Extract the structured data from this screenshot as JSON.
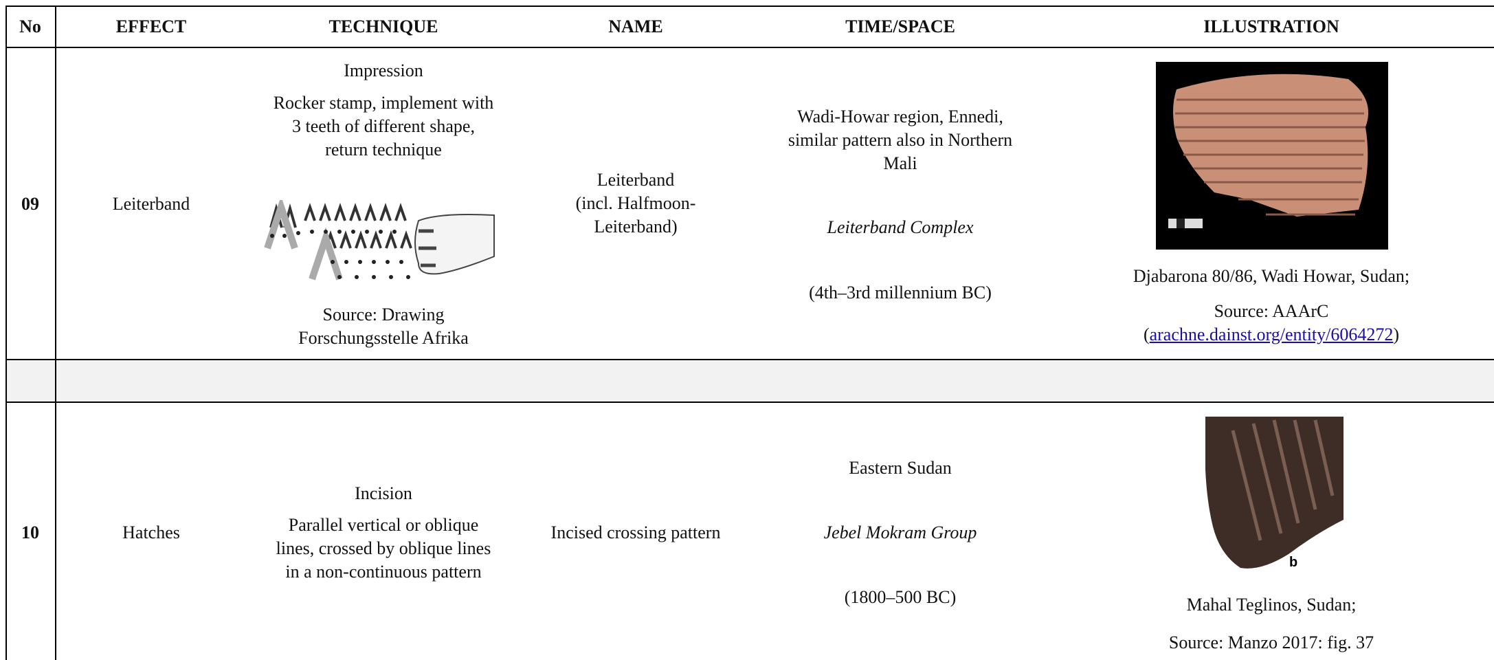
{
  "table": {
    "columns": [
      "No",
      "EFFECT",
      "TECHNIQUE",
      "NAME",
      "TIME/SPACE",
      "ILLUSTRATION"
    ],
    "rows": [
      {
        "no": "09",
        "effect": "Leiterband",
        "technique": {
          "method": "Impression",
          "description": [
            "Rocker stamp, implement with",
            "3 teeth of different shape,",
            "return technique"
          ],
          "source": [
            "Source: Drawing",
            "Forschungsstelle Afrika"
          ]
        },
        "name": [
          "Leiterband",
          "(incl. Halfmoon-",
          "Leiterband)"
        ],
        "time_space": {
          "place": [
            "Wadi-Howar region, Ennedi,",
            "similar pattern also in Northern",
            "Mali"
          ],
          "culture": "Leiterband Complex",
          "date": "(4th–3rd millennium BC)"
        },
        "illustration": {
          "caption": "Djabarona 80/86, Wadi Howar, Sudan;",
          "source": "Source: AAArC",
          "link_before": "(",
          "link": "arachne.dainst.org/entity/6064272",
          "link_after": ")"
        }
      },
      {
        "no": "10",
        "effect": "Hatches",
        "technique": {
          "method": "Incision",
          "description": [
            "Parallel vertical or oblique",
            "lines, crossed by oblique lines",
            "in a non-continuous pattern"
          ]
        },
        "name": [
          "Incised crossing pattern"
        ],
        "time_space": {
          "place": [
            "Eastern Sudan"
          ],
          "culture": "Jebel Mokram Group",
          "date": "(1800–500 BC)"
        },
        "illustration": {
          "image_label": "b",
          "caption": "Mahal Teglinos, Sudan;",
          "source": "Source: Manzo 2017: fig. 37"
        }
      }
    ]
  }
}
